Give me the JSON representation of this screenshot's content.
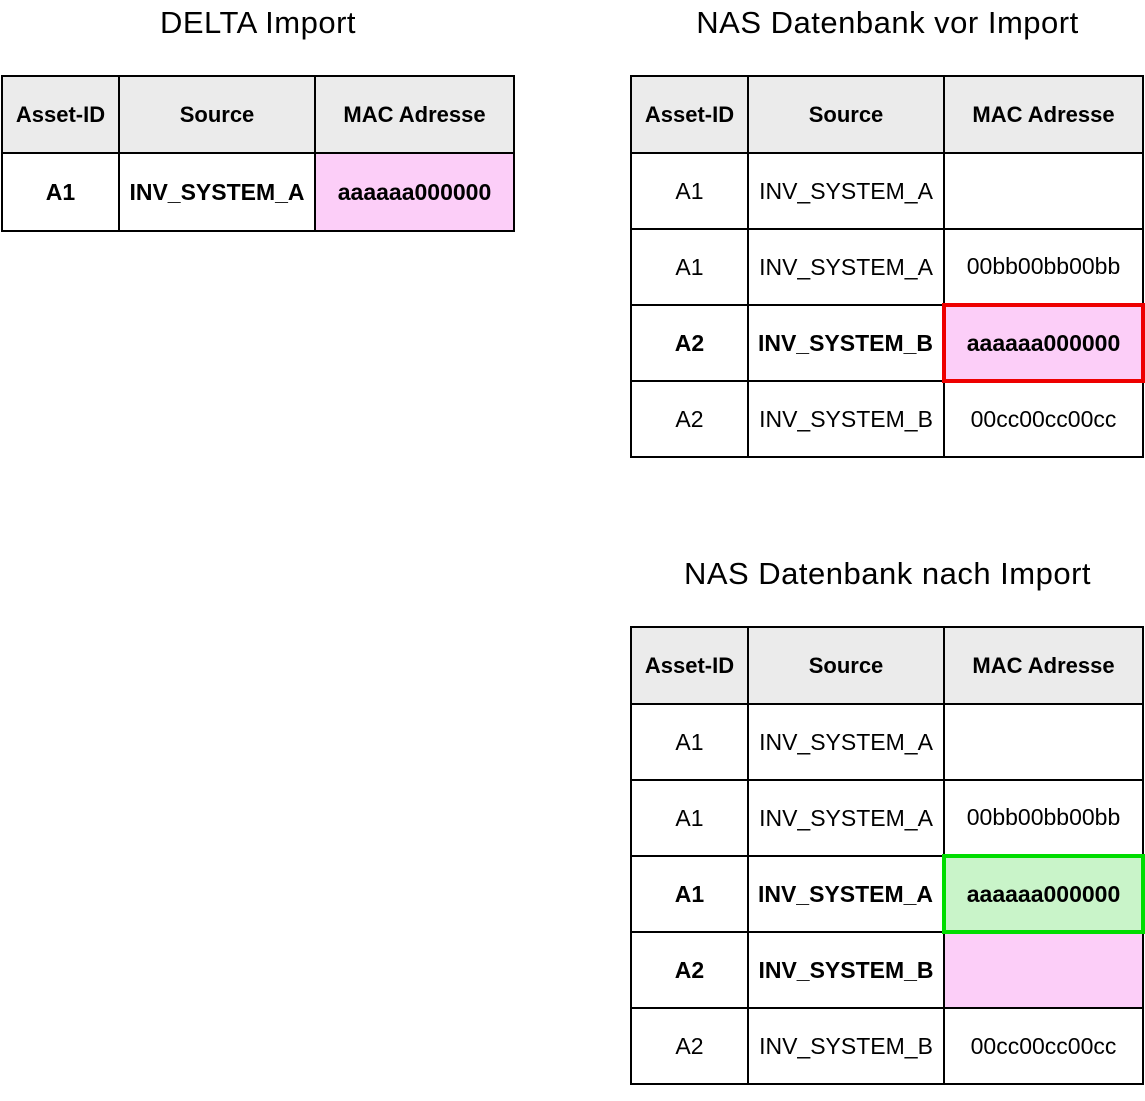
{
  "colors": {
    "header_bg": "#ebebeb",
    "table_border": "#000000",
    "highlight_pink": "#fccef8",
    "highlight_green_bg": "#c9f4c9",
    "highlight_green_border": "#00dd00",
    "highlight_red_border": "#ee0000"
  },
  "tables": [
    {
      "id": "delta-import",
      "title": "DELTA Import",
      "headers": [
        "Asset-ID",
        "Source",
        "MAC Adresse"
      ],
      "rows": [
        {
          "cells": [
            "A1",
            "INV_SYSTEM_A",
            "aaaaaa000000"
          ],
          "bold": true,
          "highlight": "pink-cell"
        }
      ]
    },
    {
      "id": "nas-vor-import",
      "title": "NAS Datenbank vor Import",
      "headers": [
        "Asset-ID",
        "Source",
        "MAC Adresse"
      ],
      "rows": [
        {
          "cells": [
            "A1",
            "INV_SYSTEM_A",
            ""
          ],
          "bold": false,
          "highlight": "none"
        },
        {
          "cells": [
            "A1",
            "INV_SYSTEM_A",
            "00bb00bb00bb"
          ],
          "bold": false,
          "highlight": "none"
        },
        {
          "cells": [
            "A2",
            "INV_SYSTEM_B",
            "aaaaaa000000"
          ],
          "bold": true,
          "highlight": "pink-cell-red-border"
        },
        {
          "cells": [
            "A2",
            "INV_SYSTEM_B",
            "00cc00cc00cc"
          ],
          "bold": false,
          "highlight": "none"
        }
      ]
    },
    {
      "id": "nas-nach-import",
      "title": "NAS Datenbank nach Import",
      "headers": [
        "Asset-ID",
        "Source",
        "MAC Adresse"
      ],
      "rows": [
        {
          "cells": [
            "A1",
            "INV_SYSTEM_A",
            ""
          ],
          "bold": false,
          "highlight": "none"
        },
        {
          "cells": [
            "A1",
            "INV_SYSTEM_A",
            "00bb00bb00bb"
          ],
          "bold": false,
          "highlight": "none"
        },
        {
          "cells": [
            "A1",
            "INV_SYSTEM_A",
            "aaaaaa000000"
          ],
          "bold": true,
          "highlight": "green-cell-green-border"
        },
        {
          "cells": [
            "A2",
            "INV_SYSTEM_B",
            ""
          ],
          "bold": true,
          "highlight": "pink-cell"
        },
        {
          "cells": [
            "A2",
            "INV_SYSTEM_B",
            "00cc00cc00cc"
          ],
          "bold": false,
          "highlight": "none"
        }
      ]
    }
  ]
}
